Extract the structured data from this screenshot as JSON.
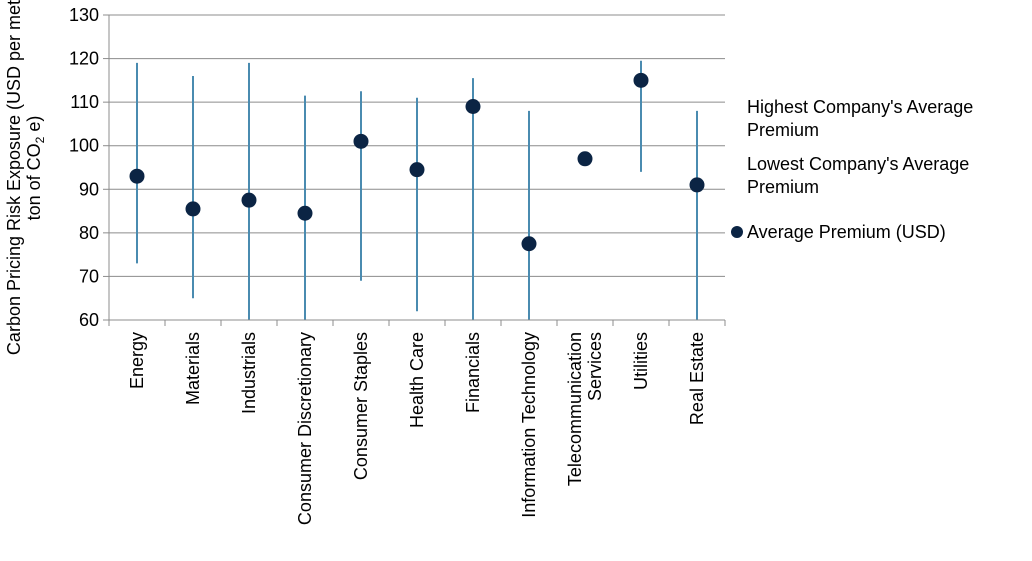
{
  "chart_data": {
    "type": "scatter",
    "title": "",
    "xlabel": "",
    "ylabel_line1": "Carbon Pricing Risk Exposure (USD per metric",
    "ylabel_line2_prefix": "ton of CO",
    "ylabel_line2_sub": "2",
    "ylabel_line2_suffix": " e)",
    "ylim": [
      60,
      130
    ],
    "yticks": [
      60,
      70,
      80,
      90,
      100,
      110,
      120,
      130
    ],
    "grid": "horizontal",
    "legend_position": "right",
    "categories": [
      [
        "Energy"
      ],
      [
        "Materials"
      ],
      [
        "Industrials"
      ],
      [
        "Consumer Discretionary"
      ],
      [
        "Consumer Staples"
      ],
      [
        "Health Care"
      ],
      [
        "Financials"
      ],
      [
        "Information Technology"
      ],
      [
        "Telecommunication",
        "Services"
      ],
      [
        "Utilities"
      ],
      [
        "Real Estate"
      ]
    ],
    "series": [
      {
        "name": "Highest Company's Average Premium",
        "values": [
          119,
          116,
          119,
          111.5,
          112.5,
          111,
          115.5,
          108,
          null,
          119.5,
          108
        ]
      },
      {
        "name": "Lowest Company's Average Premium",
        "values": [
          73,
          65,
          60,
          60,
          69,
          62,
          60,
          60,
          null,
          94,
          60
        ]
      },
      {
        "name": "Average Premium (USD)",
        "values": [
          93,
          85.5,
          87.5,
          84.5,
          101,
          94.5,
          109,
          77.5,
          97,
          115,
          91
        ]
      }
    ],
    "legend": [
      [
        "Highest Company's Average",
        "Premium"
      ],
      [
        "Lowest Company's Average",
        "Premium"
      ],
      [
        "Average Premium (USD)"
      ]
    ],
    "colors": {
      "range_line": "#4a8bb0",
      "marker": "#0b2444",
      "grid": "#8c8c8c",
      "axis": "#8c8c8c"
    }
  }
}
